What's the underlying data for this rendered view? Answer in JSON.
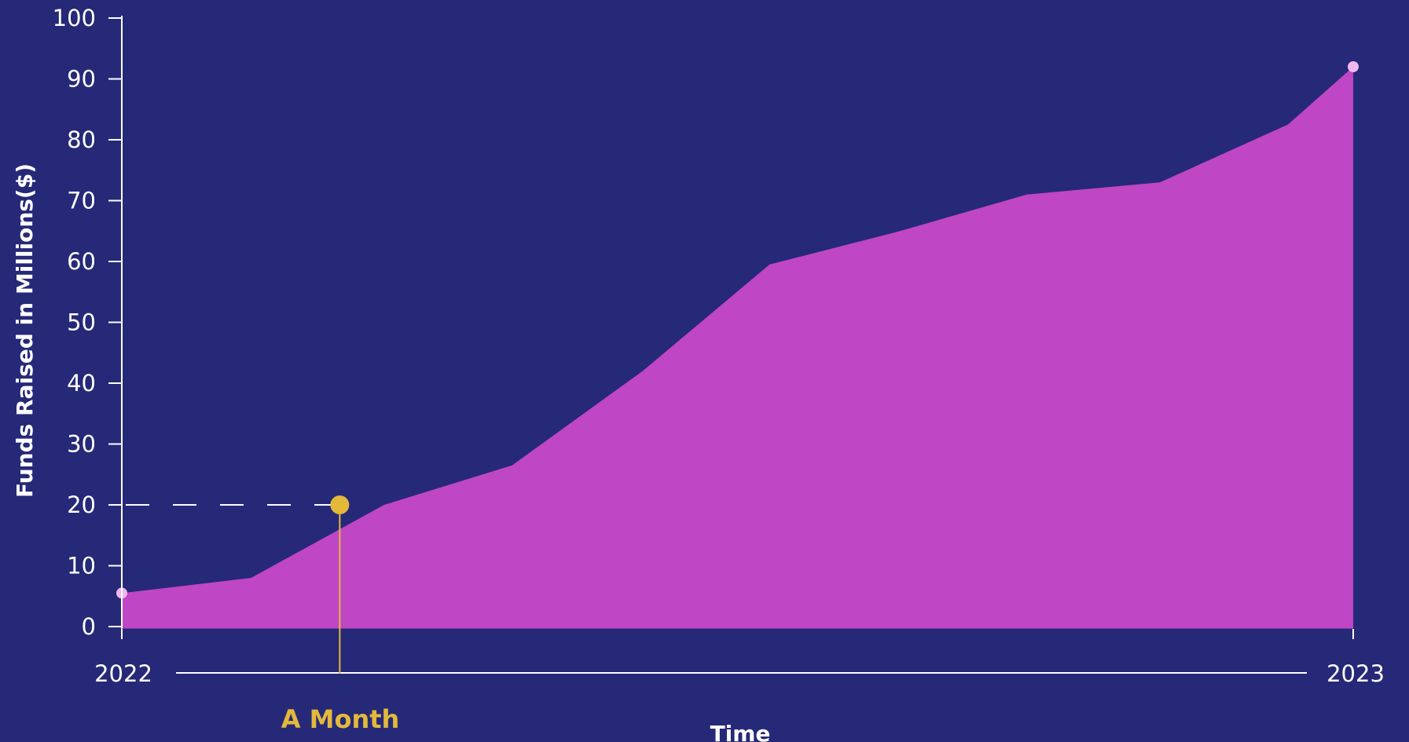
{
  "chart_data": {
    "type": "area",
    "x": [
      0,
      0.105,
      0.213,
      0.317,
      0.423,
      0.526,
      0.632,
      0.735,
      0.843,
      0.947,
      1.0
    ],
    "y": [
      5.5,
      8,
      20,
      26.5,
      42,
      59.5,
      65,
      71,
      73,
      82.5,
      92
    ],
    "xlabel": "Time",
    "ylabel": "Funds Raised in Millions($)",
    "ylim": [
      0,
      100
    ],
    "yticks": [
      0,
      10,
      20,
      30,
      40,
      50,
      60,
      70,
      80,
      90,
      100
    ],
    "xaxis": {
      "start_label": "2022",
      "end_label": "2023"
    },
    "annotation": {
      "label": "A Month",
      "value": 20,
      "x": 0.177
    },
    "colors": {
      "background": "#262878",
      "area": "#bf46c4",
      "axis": "#ffffff",
      "endpoint": "#f0b7ee",
      "marker": "#e2b93b"
    },
    "grid": false
  }
}
